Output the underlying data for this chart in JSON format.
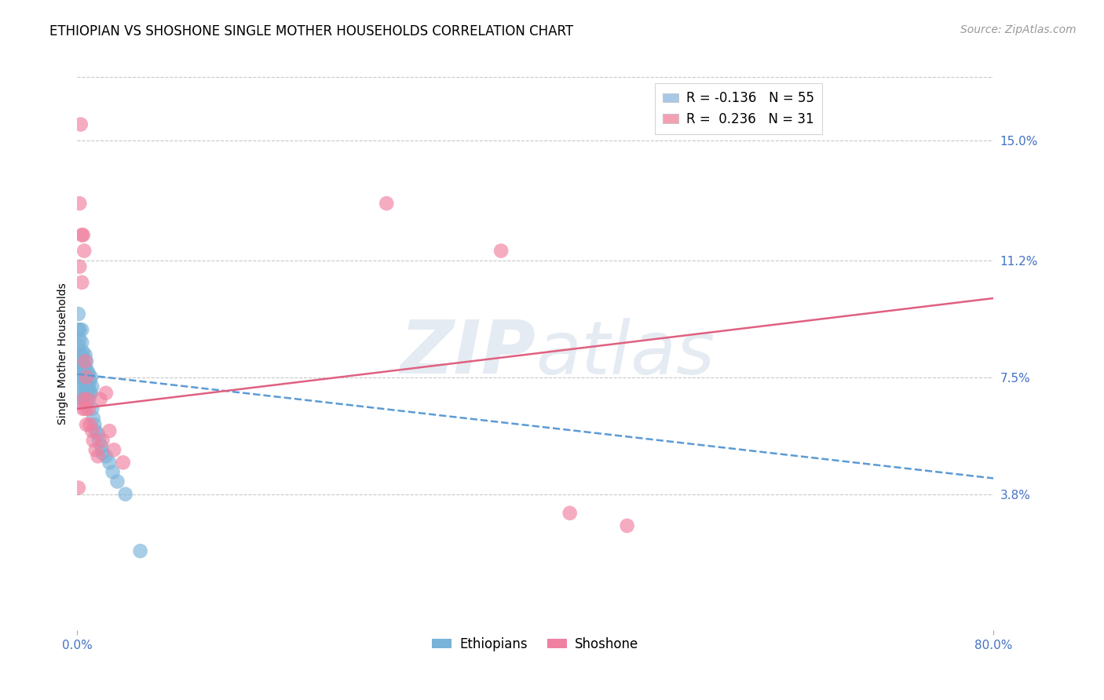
{
  "title": "ETHIOPIAN VS SHOSHONE SINGLE MOTHER HOUSEHOLDS CORRELATION CHART",
  "source": "Source: ZipAtlas.com",
  "ylabel": "Single Mother Households",
  "xlabel_ticks": [
    "0.0%",
    "80.0%"
  ],
  "ytick_labels": [
    "3.8%",
    "7.5%",
    "11.2%",
    "15.0%"
  ],
  "ytick_values": [
    0.038,
    0.075,
    0.112,
    0.15
  ],
  "xlim": [
    0.0,
    0.8
  ],
  "ylim": [
    -0.005,
    0.17
  ],
  "watermark_part1": "ZIP",
  "watermark_part2": "atlas",
  "legend_entries": [
    {
      "label": "R = -0.136   N = 55",
      "color": "#a8c8e8"
    },
    {
      "label": "R =  0.236   N = 31",
      "color": "#f4a0b4"
    }
  ],
  "ethiopian_scatter": {
    "color": "#7ab3d9",
    "x": [
      0.001,
      0.001,
      0.001,
      0.002,
      0.002,
      0.002,
      0.002,
      0.003,
      0.003,
      0.003,
      0.003,
      0.003,
      0.004,
      0.004,
      0.004,
      0.004,
      0.005,
      0.005,
      0.005,
      0.005,
      0.005,
      0.006,
      0.006,
      0.006,
      0.007,
      0.007,
      0.007,
      0.007,
      0.008,
      0.008,
      0.008,
      0.009,
      0.009,
      0.01,
      0.01,
      0.01,
      0.011,
      0.011,
      0.012,
      0.012,
      0.013,
      0.013,
      0.014,
      0.015,
      0.016,
      0.018,
      0.019,
      0.021,
      0.022,
      0.025,
      0.028,
      0.031,
      0.035,
      0.042,
      0.055
    ],
    "y": [
      0.095,
      0.09,
      0.085,
      0.09,
      0.087,
      0.082,
      0.078,
      0.08,
      0.077,
      0.074,
      0.07,
      0.067,
      0.09,
      0.086,
      0.082,
      0.078,
      0.083,
      0.079,
      0.075,
      0.072,
      0.068,
      0.078,
      0.074,
      0.07,
      0.082,
      0.078,
      0.074,
      0.068,
      0.08,
      0.075,
      0.07,
      0.077,
      0.072,
      0.076,
      0.072,
      0.068,
      0.074,
      0.07,
      0.075,
      0.07,
      0.072,
      0.065,
      0.062,
      0.06,
      0.058,
      0.057,
      0.055,
      0.053,
      0.051,
      0.05,
      0.048,
      0.045,
      0.042,
      0.038,
      0.02
    ]
  },
  "shoshone_scatter": {
    "color": "#f080a0",
    "x": [
      0.001,
      0.002,
      0.002,
      0.003,
      0.004,
      0.004,
      0.005,
      0.005,
      0.006,
      0.006,
      0.007,
      0.007,
      0.008,
      0.008,
      0.009,
      0.01,
      0.011,
      0.013,
      0.014,
      0.016,
      0.018,
      0.02,
      0.022,
      0.025,
      0.028,
      0.032,
      0.04,
      0.27,
      0.37,
      0.43,
      0.48
    ],
    "y": [
      0.04,
      0.13,
      0.11,
      0.155,
      0.12,
      0.105,
      0.12,
      0.065,
      0.115,
      0.068,
      0.08,
      0.065,
      0.075,
      0.06,
      0.068,
      0.065,
      0.06,
      0.058,
      0.055,
      0.052,
      0.05,
      0.068,
      0.055,
      0.07,
      0.058,
      0.052,
      0.048,
      0.13,
      0.115,
      0.032,
      0.028
    ]
  },
  "ethiopian_trend": {
    "color": "#5b9bd5",
    "x_start": 0.0,
    "x_end": 0.8,
    "y_start": 0.076,
    "y_end": 0.043,
    "linestyle": "--"
  },
  "shoshone_trend": {
    "color": "#e06080",
    "x_start": 0.0,
    "x_end": 0.8,
    "y_start": 0.065,
    "y_end": 0.1,
    "linestyle": "-"
  },
  "title_fontsize": 12,
  "source_fontsize": 10,
  "axis_label_fontsize": 10,
  "tick_fontsize": 11,
  "tick_color": "#4472c4",
  "grid_color": "#c8c8c8",
  "background_color": "#ffffff"
}
